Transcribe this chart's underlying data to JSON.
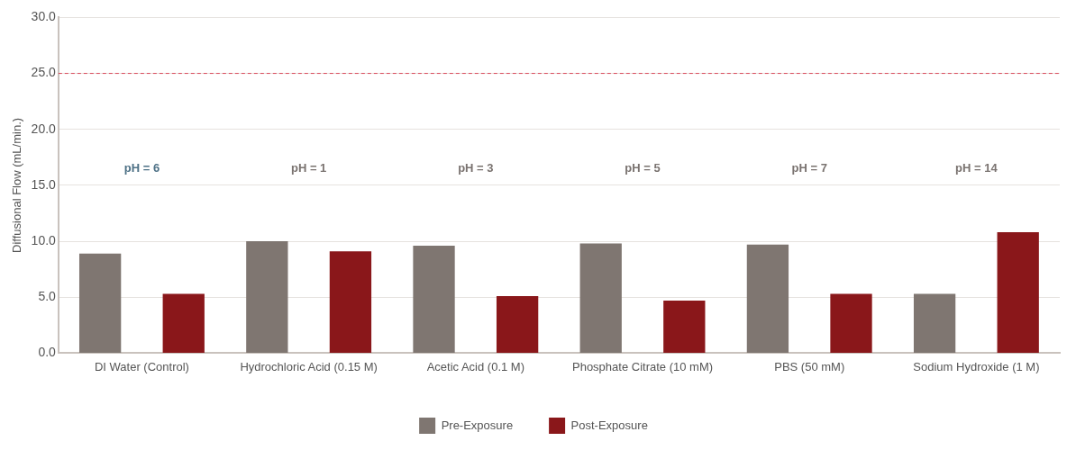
{
  "chart_data": {
    "type": "bar",
    "ylabel": "Diffusional Flow (mL/min.)",
    "categories": [
      "DI Water (Control)",
      "Hydrochloric Acid (0.15 M)",
      "Acetic Acid (0.1 M)",
      "Phosphate Citrate (10 mM)",
      "PBS (50 mM)",
      "Sodium Hydroxide (1 M)"
    ],
    "series": [
      {
        "name": "Pre-Exposure",
        "color": "#7f7671",
        "values": [
          8.9,
          10.0,
          9.6,
          9.8,
          9.7,
          5.3
        ]
      },
      {
        "name": "Post-Exposure",
        "color": "#8a171a",
        "values": [
          5.3,
          9.1,
          5.1,
          4.7,
          5.3,
          10.8
        ]
      }
    ],
    "ylim": [
      0,
      30
    ],
    "yticks": [
      {
        "value": 0,
        "label": "0.0"
      },
      {
        "value": 5,
        "label": "5.0"
      },
      {
        "value": 10,
        "label": "10.0"
      },
      {
        "value": 15,
        "label": "15.0"
      },
      {
        "value": 20,
        "label": "20.0"
      },
      {
        "value": 25,
        "label": "25.0"
      },
      {
        "value": 30,
        "label": "30.0"
      }
    ],
    "grid": "y",
    "legend": "bottom",
    "ref_lines": [
      {
        "axis": "y",
        "value": 25,
        "color": "#d9475a",
        "line_style": "dashed"
      }
    ],
    "annotations": [
      "pH = 6",
      "pH = 1",
      "pH = 3",
      "pH = 5",
      "pH = 7",
      "pH = 14"
    ]
  }
}
